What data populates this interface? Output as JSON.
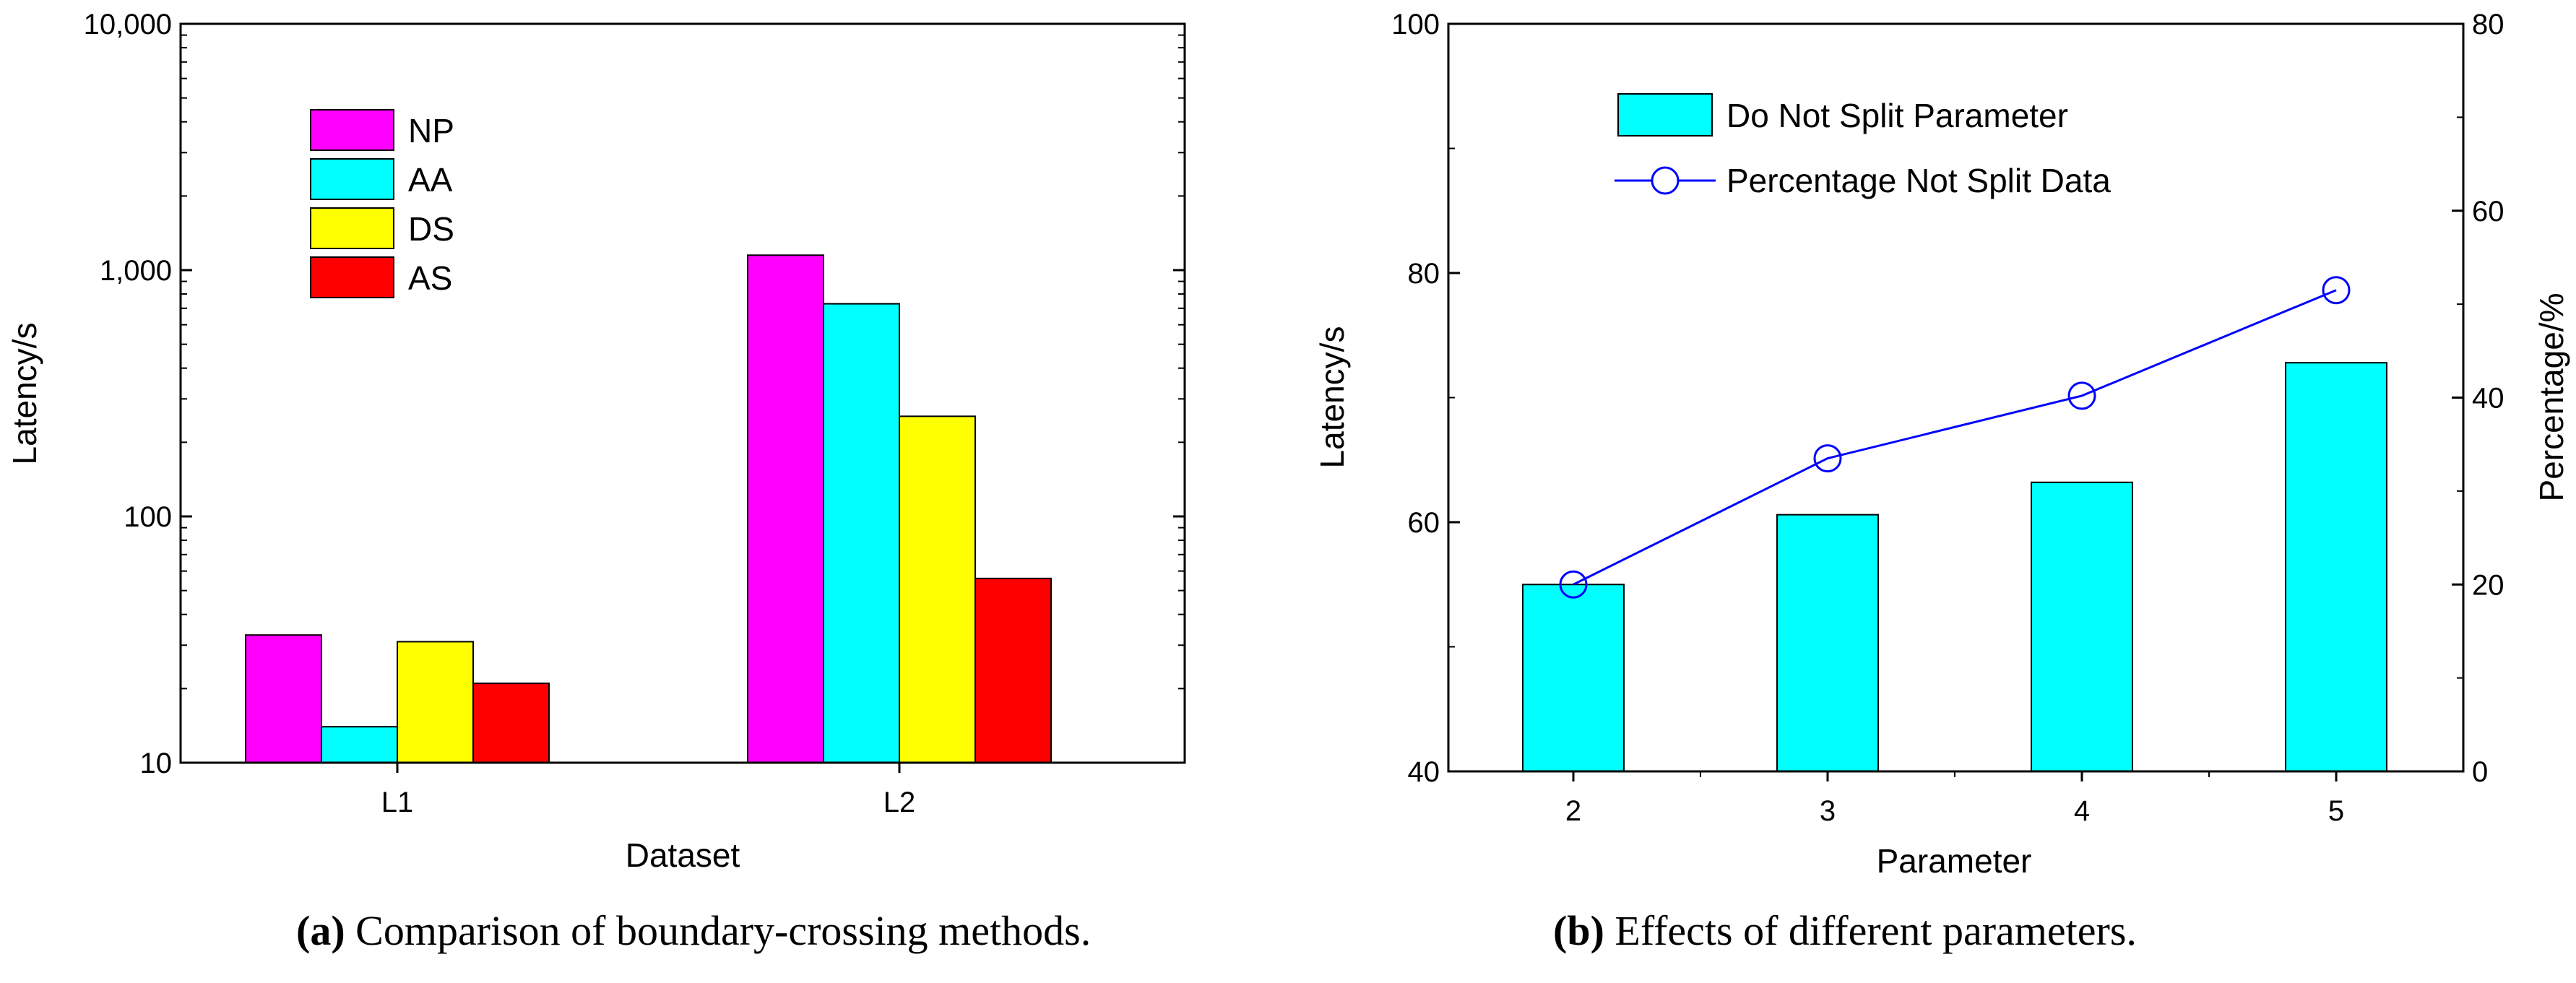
{
  "chart_data": [
    {
      "id": "a",
      "type": "bar",
      "yscale": "log",
      "title": "",
      "xlabel": "Dataset",
      "ylabel": "Latency/s",
      "ylim": [
        10,
        10000
      ],
      "yticks": [
        {
          "value": 10,
          "label": "10"
        },
        {
          "value": 100,
          "label": "100"
        },
        {
          "value": 1000,
          "label": "1,000"
        },
        {
          "value": 10000,
          "label": "10,000"
        }
      ],
      "categories": [
        "L1",
        "L2"
      ],
      "legend_position": "top-left",
      "series": [
        {
          "name": "NP",
          "color": "#ff00ff",
          "values": [
            33,
            1150
          ]
        },
        {
          "name": "AA",
          "color": "#00ffff",
          "values": [
            14,
            730
          ]
        },
        {
          "name": "DS",
          "color": "#ffff00",
          "values": [
            31,
            255
          ]
        },
        {
          "name": "AS",
          "color": "#ff0000",
          "values": [
            21,
            56
          ]
        }
      ],
      "caption_label": "(a)",
      "caption_text": "Comparison of boundary-crossing methods."
    },
    {
      "id": "b",
      "type": "bar+line",
      "title": "",
      "xlabel": "Parameter",
      "ylabel": "Latency/s",
      "y2label": "Percentage/%",
      "categories": [
        "2",
        "3",
        "4",
        "5"
      ],
      "ylim": [
        40,
        100
      ],
      "yticks": [
        40,
        60,
        80,
        100
      ],
      "y2lim": [
        0,
        80
      ],
      "y2ticks": [
        0,
        20,
        40,
        60,
        80
      ],
      "legend_position": "top-left",
      "bars": {
        "name": "Do Not Split Parameter",
        "color": "#00ffff",
        "values": [
          55,
          60.6,
          63.2,
          72.8
        ]
      },
      "line": {
        "name": "Percentage Not Split Data",
        "color": "#0000ff",
        "values": [
          20,
          33.5,
          40.2,
          51.5
        ]
      },
      "caption_label": "(b)",
      "caption_text": "Effects of different parameters."
    }
  ]
}
